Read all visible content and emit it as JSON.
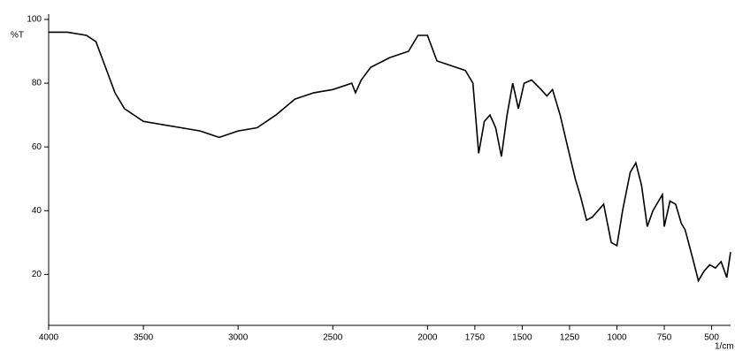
{
  "chart_data": {
    "type": "line",
    "y_label": "%T",
    "x_label": "1/cm",
    "x": [
      4000,
      3900,
      3800,
      3750,
      3700,
      3650,
      3600,
      3500,
      3400,
      3300,
      3200,
      3100,
      3000,
      2900,
      2800,
      2700,
      2600,
      2500,
      2400,
      2380,
      2350,
      2300,
      2200,
      2100,
      2050,
      2000,
      1950,
      1900,
      1850,
      1800,
      1760,
      1730,
      1700,
      1670,
      1640,
      1610,
      1580,
      1550,
      1520,
      1490,
      1450,
      1400,
      1370,
      1340,
      1300,
      1260,
      1220,
      1190,
      1160,
      1130,
      1100,
      1070,
      1030,
      1000,
      970,
      930,
      900,
      870,
      840,
      810,
      790,
      760,
      750,
      720,
      690,
      660,
      640,
      600,
      570,
      540,
      510,
      480,
      450,
      420,
      400
    ],
    "series": [
      {
        "color": "#000000",
        "values": [
          96,
          96,
          95,
          93,
          85,
          77,
          72,
          68,
          67,
          66,
          65,
          63,
          65,
          66,
          70,
          75,
          77,
          78,
          80,
          77,
          81,
          85,
          88,
          90,
          95,
          95,
          87,
          86,
          85,
          84,
          80,
          58,
          68,
          70,
          66,
          57,
          70,
          80,
          72,
          80,
          81,
          78,
          76,
          78,
          70,
          60,
          50,
          44,
          37,
          38,
          40,
          42,
          30,
          29,
          40,
          52,
          55,
          48,
          35,
          40,
          42,
          45,
          35,
          43,
          42,
          36,
          34,
          25,
          18,
          21,
          23,
          22,
          24,
          19,
          27
        ]
      }
    ],
    "xlim": [
      4000,
      400
    ],
    "ylim": [
      4,
      100
    ],
    "xticks": [
      4000,
      3500,
      3000,
      2500,
      2000,
      1750,
      1500,
      1250,
      1000,
      750,
      500
    ],
    "yticks": [
      20,
      40,
      60,
      80,
      100
    ]
  }
}
